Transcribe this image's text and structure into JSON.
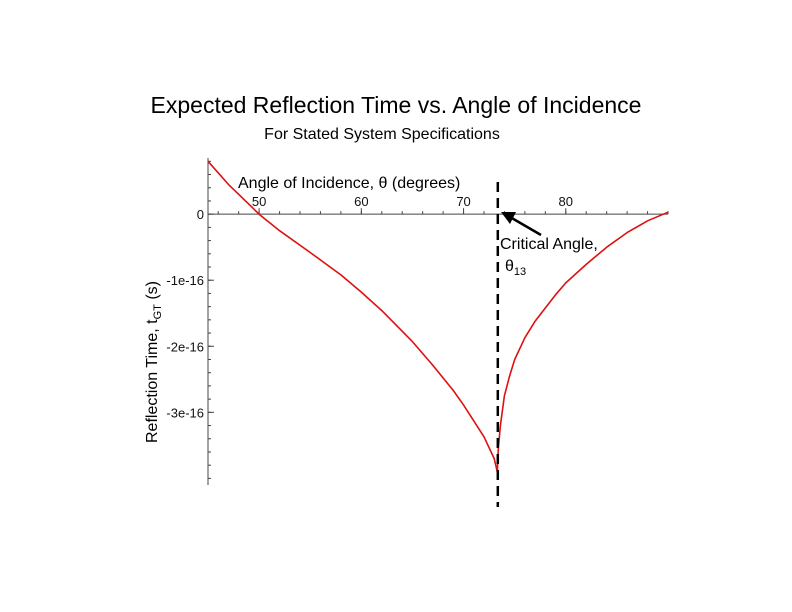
{
  "chart_data": {
    "type": "line",
    "title": "Expected Reflection Time vs. Angle of Incidence",
    "subtitle": "For Stated System Specifications",
    "xlabel": "Angle of Incidence, θ (degrees)",
    "ylabel": "Reflection Time, t",
    "ylabel_sub": "GT",
    "ylabel_unit": " (s)",
    "xlim": [
      45,
      90
    ],
    "ylim": [
      -4.1e-16,
      8.5e-17
    ],
    "x_ticks": [
      50,
      60,
      70,
      80
    ],
    "y_ticks": [
      {
        "value": 0,
        "label": "0"
      },
      {
        "value": -1e-16,
        "label": "-1e-16"
      },
      {
        "value": -2e-16,
        "label": "-2e-16"
      },
      {
        "value": -3e-16,
        "label": "-3e-16"
      }
    ],
    "grid": false,
    "series": [
      {
        "color": "#dd1111",
        "x": [
          45,
          47,
          49,
          50,
          52,
          55,
          58,
          60,
          62,
          65,
          67,
          69,
          70,
          71,
          72,
          73,
          73.3,
          73.4,
          73.6,
          74,
          74.5,
          75,
          76,
          77,
          78,
          79,
          80,
          82,
          84,
          86,
          88,
          90
        ],
        "y": [
          8e-17,
          4.5e-17,
          1.5e-17,
          0.0,
          -2.5e-17,
          -5.8e-17,
          -9.2e-17,
          -1.18e-16,
          -1.46e-16,
          -1.93e-16,
          -2.29e-16,
          -2.67e-16,
          -2.89e-16,
          -3.13e-16,
          -3.37e-16,
          -3.7e-16,
          -3.9e-16,
          -3.55e-16,
          -3.2e-16,
          -2.75e-16,
          -2.45e-16,
          -2.2e-16,
          -1.87e-16,
          -1.62e-16,
          -1.42e-16,
          -1.22e-16,
          -1.04e-16,
          -7.6e-17,
          -5e-17,
          -2.8e-17,
          -1e-17,
          3e-18
        ]
      }
    ],
    "critical_angle_x": 73.35,
    "annotation": {
      "text": "Critical Angle,",
      "symbol": "θ",
      "symbol_sub": "13"
    }
  }
}
